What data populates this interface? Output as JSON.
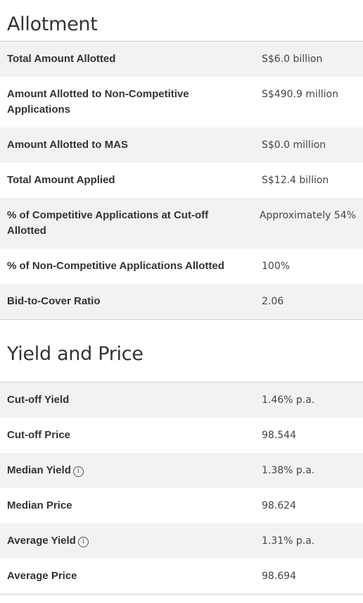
{
  "allotment": {
    "title": "Allotment",
    "rows": [
      {
        "label": "Total Amount Allotted",
        "value": "S$6.0 billion"
      },
      {
        "label": "Amount Allotted to Non-Competitive Applications",
        "value": "S$490.9 million"
      },
      {
        "label": "Amount Allotted to MAS",
        "value": "S$0.0 million"
      },
      {
        "label": "Total Amount Applied",
        "value": "S$12.4 billion"
      },
      {
        "label": "% of Competitive Applications at Cut-off Allotted",
        "value": "Approximately 54%"
      },
      {
        "label": "% of Non-Competitive Applications Allotted",
        "value": "100%"
      },
      {
        "label": "Bid-to-Cover Ratio",
        "value": "2.06"
      }
    ]
  },
  "yield_price": {
    "title": "Yield and Price",
    "rows": [
      {
        "label": "Cut-off Yield",
        "value": "1.46% p.a."
      },
      {
        "label": "Cut-off Price",
        "value": "98.544"
      },
      {
        "label": "Median Yield",
        "value": "1.38% p.a.",
        "icon": "info-icon"
      },
      {
        "label": "Median Price",
        "value": "98.624"
      },
      {
        "label": "Average Yield",
        "value": "1.31% p.a.",
        "icon": "info-icon"
      },
      {
        "label": "Average Price",
        "value": "98.694"
      }
    ]
  },
  "icons": {
    "info_glyph": "i"
  }
}
